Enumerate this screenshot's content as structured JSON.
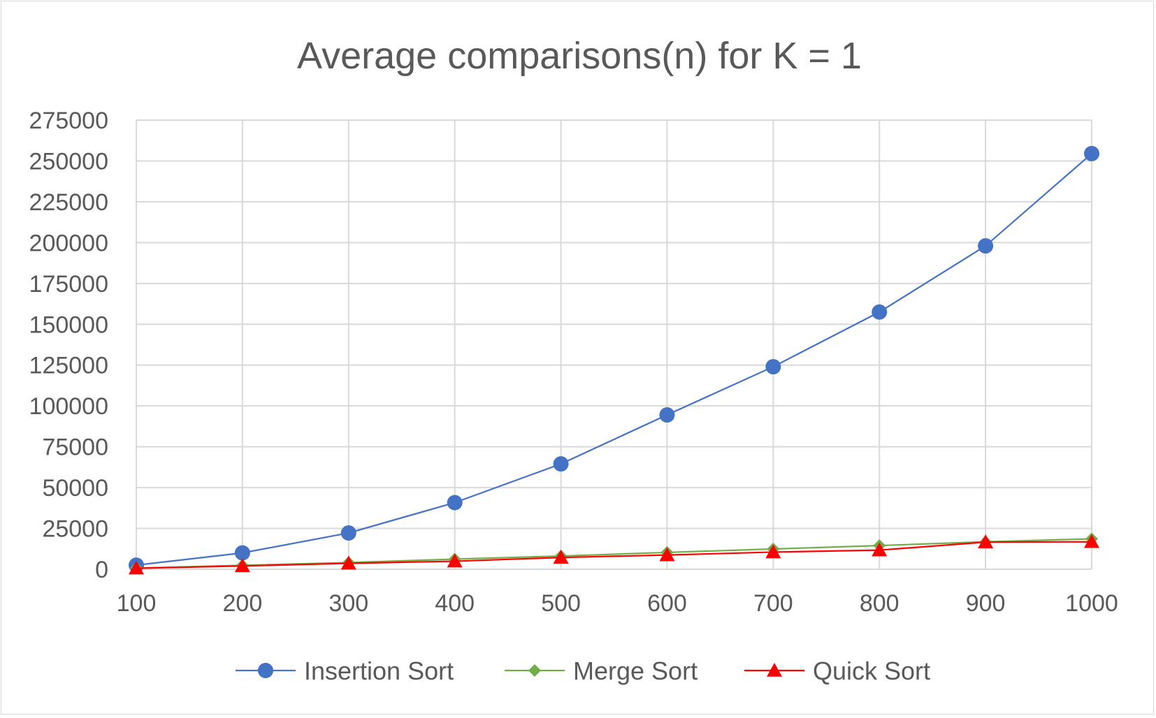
{
  "chart_data": {
    "type": "line",
    "title": "Average comparisons(n) for K = 1",
    "xlabel": "",
    "ylabel": "",
    "categories": [
      "100",
      "200",
      "300",
      "400",
      "500",
      "600",
      "700",
      "800",
      "900",
      "1000"
    ],
    "ylim": [
      0,
      275000
    ],
    "yticks": [
      "0",
      "25000",
      "50000",
      "75000",
      "100000",
      "125000",
      "150000",
      "175000",
      "200000",
      "225000",
      "250000",
      "275000"
    ],
    "grid": true,
    "legend_position": "bottom",
    "series": [
      {
        "name": "Insertion Sort",
        "color": "#4472c4",
        "marker": "circle",
        "values": [
          2500,
          10000,
          22200,
          40800,
          64500,
          94500,
          124000,
          157500,
          198000,
          254500
        ]
      },
      {
        "name": "Merge Sort",
        "color": "#70ad47",
        "marker": "diamond",
        "values": [
          700,
          2400,
          4100,
          6200,
          8100,
          10300,
          12400,
          14500,
          16800,
          18600
        ]
      },
      {
        "name": "Quick Sort",
        "color": "#ff0000",
        "marker": "triangle",
        "values": [
          600,
          2000,
          3600,
          4900,
          7200,
          8700,
          10500,
          11700,
          16600,
          16800
        ]
      }
    ]
  }
}
